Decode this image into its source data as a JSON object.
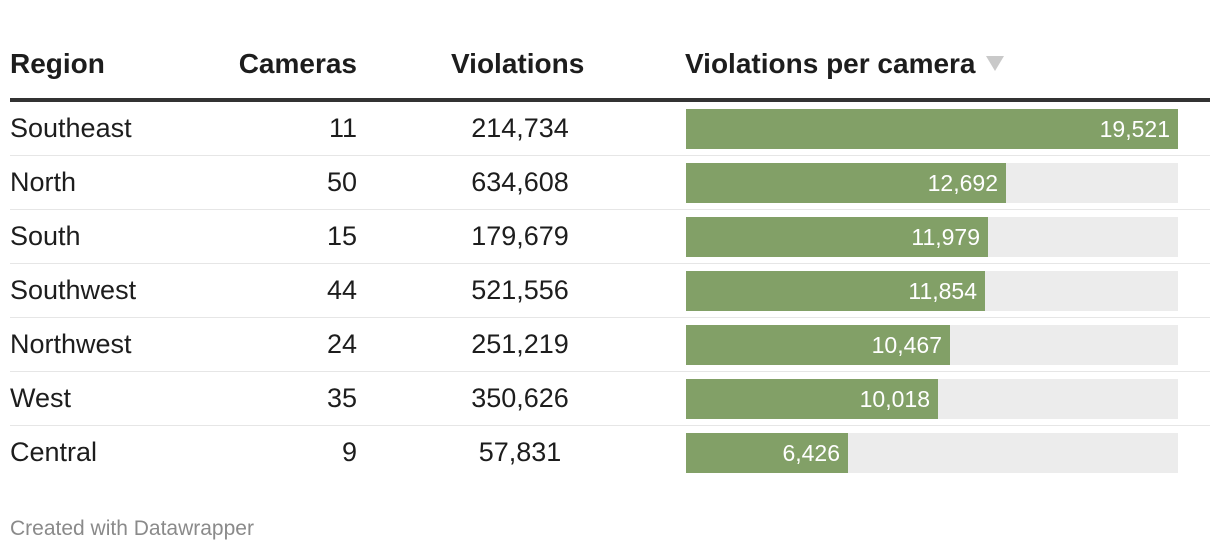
{
  "chart_data": {
    "type": "table",
    "columns": [
      "Region",
      "Cameras",
      "Violations",
      "Violations per camera"
    ],
    "sorted_column": "Violations per camera",
    "sort_direction": "descending",
    "rows": [
      {
        "region": "Southeast",
        "cameras": "11",
        "violations": "214,734",
        "vpc": 19521,
        "vpc_label": "19,521"
      },
      {
        "region": "North",
        "cameras": "50",
        "violations": "634,608",
        "vpc": 12692,
        "vpc_label": "12,692"
      },
      {
        "region": "South",
        "cameras": "15",
        "violations": "179,679",
        "vpc": 11979,
        "vpc_label": "11,979"
      },
      {
        "region": "Southwest",
        "cameras": "44",
        "violations": "521,556",
        "vpc": 11854,
        "vpc_label": "11,854"
      },
      {
        "region": "Northwest",
        "cameras": "24",
        "violations": "251,219",
        "vpc": 10467,
        "vpc_label": "10,467"
      },
      {
        "region": "West",
        "cameras": "35",
        "violations": "350,626",
        "vpc": 10018,
        "vpc_label": "10,018"
      },
      {
        "region": "Central",
        "cameras": "9",
        "violations": "57,831",
        "vpc": 6426,
        "vpc_label": "6,426"
      }
    ],
    "bar_max": 19521,
    "colors": {
      "bar": "#82a067",
      "track": "#ececec",
      "header_rule": "#333333"
    }
  },
  "footer": {
    "credit": "Created with Datawrapper"
  }
}
